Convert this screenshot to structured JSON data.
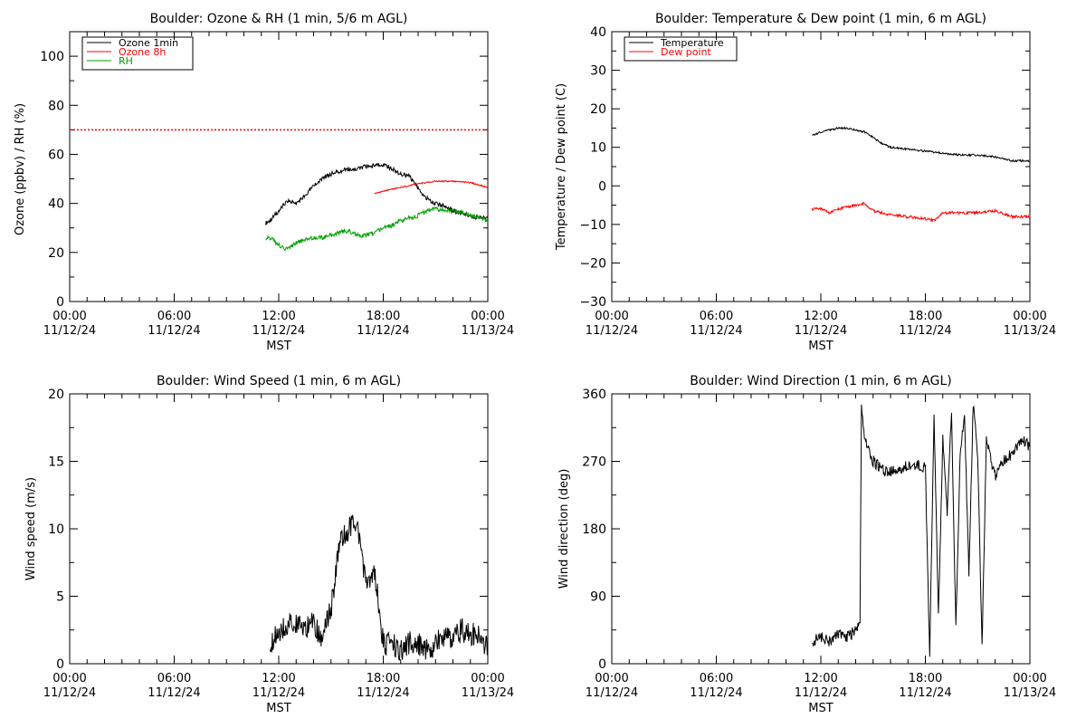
{
  "chart_data": [
    {
      "type": "line",
      "title": "Boulder: Ozone & RH (1 min, 5/6 m AGL)",
      "xlabel": "MST",
      "ylabel": "Ozone (ppbv) / RH (%)",
      "xlim": [
        "2024-11-12 00:00",
        "2024-11-13 00:00"
      ],
      "ylim": [
        0,
        110
      ],
      "x_ticks": [
        {
          "time": "00:00",
          "date": "11/12/24"
        },
        {
          "time": "06:00",
          "date": "11/12/24"
        },
        {
          "time": "12:00",
          "date": "11/12/24"
        },
        {
          "time": "18:00",
          "date": "11/12/24"
        },
        {
          "time": "00:00",
          "date": "11/13/24"
        }
      ],
      "y_ticks": [
        "0",
        "20",
        "40",
        "60",
        "80",
        "100"
      ],
      "y_tick_values": [
        0,
        20,
        40,
        60,
        80,
        100
      ],
      "legend": "top-left",
      "reference_line": {
        "y": 70,
        "style": "dotted",
        "color": "#ff0000"
      },
      "series": [
        {
          "name": "Ozone 1min",
          "color": "#000000",
          "x": [
            "11:15",
            "11:30",
            "12:00",
            "12:30",
            "13:00",
            "13:30",
            "14:00",
            "14:30",
            "15:00",
            "15:30",
            "16:00",
            "16:30",
            "17:00",
            "17:30",
            "18:00",
            "18:30",
            "19:00",
            "19:30",
            "20:00",
            "20:30",
            "21:00",
            "21:30",
            "22:00",
            "22:30",
            "23:00",
            "23:30",
            "24:00"
          ],
          "y": [
            32,
            33,
            37,
            41,
            40,
            43,
            47,
            50,
            52,
            53,
            54,
            54,
            55,
            55.5,
            56,
            54,
            52,
            51,
            46,
            42,
            40,
            39,
            37,
            36,
            35,
            34,
            34
          ]
        },
        {
          "name": "Ozone 8h",
          "color": "#ff0000",
          "x": [
            "17:30",
            "18:00",
            "19:00",
            "20:00",
            "21:00",
            "22:00",
            "23:00",
            "24:00"
          ],
          "y": [
            44,
            45,
            46.5,
            48,
            49,
            49,
            48.5,
            46.5
          ]
        },
        {
          "name": "RH",
          "color": "#00a000",
          "x": [
            "11:15",
            "11:30",
            "12:00",
            "12:30",
            "13:00",
            "13:30",
            "14:00",
            "14:30",
            "15:00",
            "15:30",
            "16:00",
            "16:30",
            "17:00",
            "17:30",
            "18:00",
            "18:30",
            "19:00",
            "19:30",
            "20:00",
            "20:30",
            "21:00",
            "21:30",
            "22:00",
            "22:30",
            "23:00",
            "23:30",
            "24:00"
          ],
          "y": [
            26,
            26,
            23,
            21,
            24,
            25,
            26,
            26,
            27,
            28,
            29,
            27,
            27,
            28,
            30,
            31,
            33,
            34,
            35,
            37,
            38,
            37,
            37,
            36,
            35,
            34,
            33
          ]
        }
      ]
    },
    {
      "type": "line",
      "title": "Boulder: Temperature & Dew point (1 min, 6 m AGL)",
      "xlabel": "MST",
      "ylabel": "Temperature / Dew point (C)",
      "xlim": [
        "2024-11-12 00:00",
        "2024-11-13 00:00"
      ],
      "ylim": [
        -30,
        40
      ],
      "x_ticks": [
        {
          "time": "00:00",
          "date": "11/12/24"
        },
        {
          "time": "06:00",
          "date": "11/12/24"
        },
        {
          "time": "12:00",
          "date": "11/12/24"
        },
        {
          "time": "18:00",
          "date": "11/12/24"
        },
        {
          "time": "00:00",
          "date": "11/13/24"
        }
      ],
      "y_ticks": [
        "−30",
        "−20",
        "−10",
        "0",
        "10",
        "20",
        "30",
        "40"
      ],
      "y_tick_values": [
        -30,
        -20,
        -10,
        0,
        10,
        20,
        30,
        40
      ],
      "legend": "top-left",
      "series": [
        {
          "name": "Temperature",
          "color": "#000000",
          "x": [
            "11:30",
            "12:00",
            "12:30",
            "13:00",
            "13:30",
            "14:00",
            "14:30",
            "15:00",
            "15:30",
            "16:00",
            "17:00",
            "18:00",
            "19:00",
            "20:00",
            "21:00",
            "22:00",
            "23:00",
            "23:30",
            "24:00"
          ],
          "y": [
            13,
            14,
            14.5,
            15,
            15,
            14.5,
            14,
            12.5,
            11,
            10,
            9.5,
            9,
            8.5,
            8,
            8,
            7.5,
            6.5,
            6.5,
            6.5
          ]
        },
        {
          "name": "Dew point",
          "color": "#ff0000",
          "x": [
            "11:30",
            "12:00",
            "12:30",
            "13:00",
            "13:30",
            "14:00",
            "14:30",
            "15:00",
            "15:30",
            "16:00",
            "17:00",
            "18:00",
            "18:30",
            "19:00",
            "20:00",
            "21:00",
            "22:00",
            "23:00",
            "24:00"
          ],
          "y": [
            -6,
            -6,
            -7,
            -6,
            -5.5,
            -5,
            -4.5,
            -6.5,
            -7,
            -7.5,
            -8,
            -8.5,
            -9,
            -7,
            -7,
            -7,
            -6.5,
            -8,
            -8
          ]
        }
      ]
    },
    {
      "type": "line",
      "title": "Boulder: Wind Speed (1 min, 6 m AGL)",
      "xlabel": "MST",
      "ylabel": "Wind speed (m/s)",
      "xlim": [
        "2024-11-12 00:00",
        "2024-11-13 00:00"
      ],
      "ylim": [
        0,
        20
      ],
      "x_ticks": [
        {
          "time": "00:00",
          "date": "11/12/24"
        },
        {
          "time": "06:00",
          "date": "11/12/24"
        },
        {
          "time": "12:00",
          "date": "11/12/24"
        },
        {
          "time": "18:00",
          "date": "11/12/24"
        },
        {
          "time": "00:00",
          "date": "11/13/24"
        }
      ],
      "y_ticks": [
        "0",
        "5",
        "10",
        "15",
        "20"
      ],
      "y_tick_values": [
        0,
        5,
        10,
        15,
        20
      ],
      "series": [
        {
          "name": "",
          "color": "#000000",
          "x": [
            "11:30",
            "12:00",
            "12:30",
            "13:00",
            "13:30",
            "14:00",
            "14:30",
            "15:00",
            "15:30",
            "16:00",
            "16:30",
            "17:00",
            "17:30",
            "18:00",
            "18:30",
            "19:00",
            "19:30",
            "20:00",
            "20:30",
            "21:00",
            "21:30",
            "22:00",
            "22:30",
            "23:00",
            "23:30",
            "24:00"
          ],
          "y": [
            1.5,
            2.5,
            3,
            3,
            2.5,
            3,
            2,
            4,
            9,
            10,
            10.5,
            6,
            7,
            1.5,
            1.5,
            1,
            1.5,
            1.5,
            1,
            1.5,
            2,
            2,
            2.5,
            2,
            2.5,
            1
          ]
        }
      ]
    },
    {
      "type": "line",
      "title": "Boulder: Wind Direction (1 min, 6 m AGL)",
      "xlabel": "MST",
      "ylabel": "Wind direction (deg)",
      "xlim": [
        "2024-11-12 00:00",
        "2024-11-13 00:00"
      ],
      "ylim": [
        0,
        360
      ],
      "x_ticks": [
        {
          "time": "00:00",
          "date": "11/12/24"
        },
        {
          "time": "06:00",
          "date": "11/12/24"
        },
        {
          "time": "12:00",
          "date": "11/12/24"
        },
        {
          "time": "18:00",
          "date": "11/12/24"
        },
        {
          "time": "00:00",
          "date": "11/13/24"
        }
      ],
      "y_ticks": [
        "0",
        "90",
        "180",
        "270",
        "360"
      ],
      "y_tick_values": [
        0,
        90,
        180,
        270,
        360
      ],
      "series": [
        {
          "name": "",
          "color": "#000000",
          "x": [
            "11:30",
            "12:00",
            "12:30",
            "13:00",
            "13:30",
            "14:00",
            "14:15",
            "14:20",
            "14:30",
            "15:00",
            "15:30",
            "16:00",
            "16:30",
            "17:00",
            "17:30",
            "18:00",
            "18:15",
            "18:30",
            "18:45",
            "19:00",
            "19:15",
            "19:30",
            "19:45",
            "20:00",
            "20:15",
            "20:30",
            "20:45",
            "21:00",
            "21:15",
            "21:30",
            "22:00",
            "22:30",
            "23:00",
            "23:30",
            "24:00"
          ],
          "y": [
            30,
            35,
            30,
            40,
            35,
            45,
            60,
            350,
            300,
            270,
            260,
            255,
            260,
            265,
            265,
            260,
            10,
            330,
            60,
            300,
            200,
            340,
            50,
            280,
            330,
            120,
            350,
            280,
            20,
            300,
            250,
            270,
            280,
            300,
            290
          ]
        }
      ]
    }
  ]
}
